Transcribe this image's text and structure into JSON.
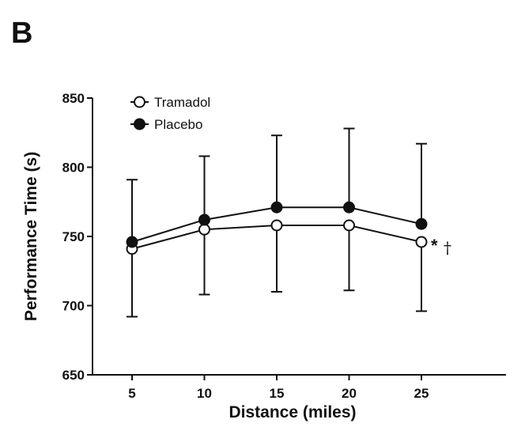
{
  "panel_label": "B",
  "chart_data": {
    "type": "line",
    "title": "",
    "xlabel": "Distance (miles)",
    "ylabel": "Performance Time (s)",
    "x": [
      5,
      10,
      15,
      20,
      25
    ],
    "xticks": [
      "5",
      "10",
      "15",
      "20",
      "25"
    ],
    "xlim": [
      2.5,
      28
    ],
    "ylim": [
      650,
      850
    ],
    "yticks": [
      650,
      700,
      750,
      800,
      850
    ],
    "grid": false,
    "legend_position": "top-left",
    "series": [
      {
        "name": "Tramadol",
        "marker": "open-circle",
        "values": [
          741,
          755,
          758,
          758,
          746
        ],
        "error_lower": [
          692,
          708,
          710,
          711,
          696
        ]
      },
      {
        "name": "Placebo",
        "marker": "filled-circle",
        "values": [
          746,
          762,
          771,
          771,
          759
        ],
        "error_upper": [
          791,
          808,
          823,
          828,
          817
        ]
      }
    ],
    "annotations": [
      {
        "text": "*",
        "x": 25,
        "meaning": "significance marker"
      },
      {
        "text": "†",
        "x": 25,
        "meaning": "significance marker"
      }
    ]
  }
}
